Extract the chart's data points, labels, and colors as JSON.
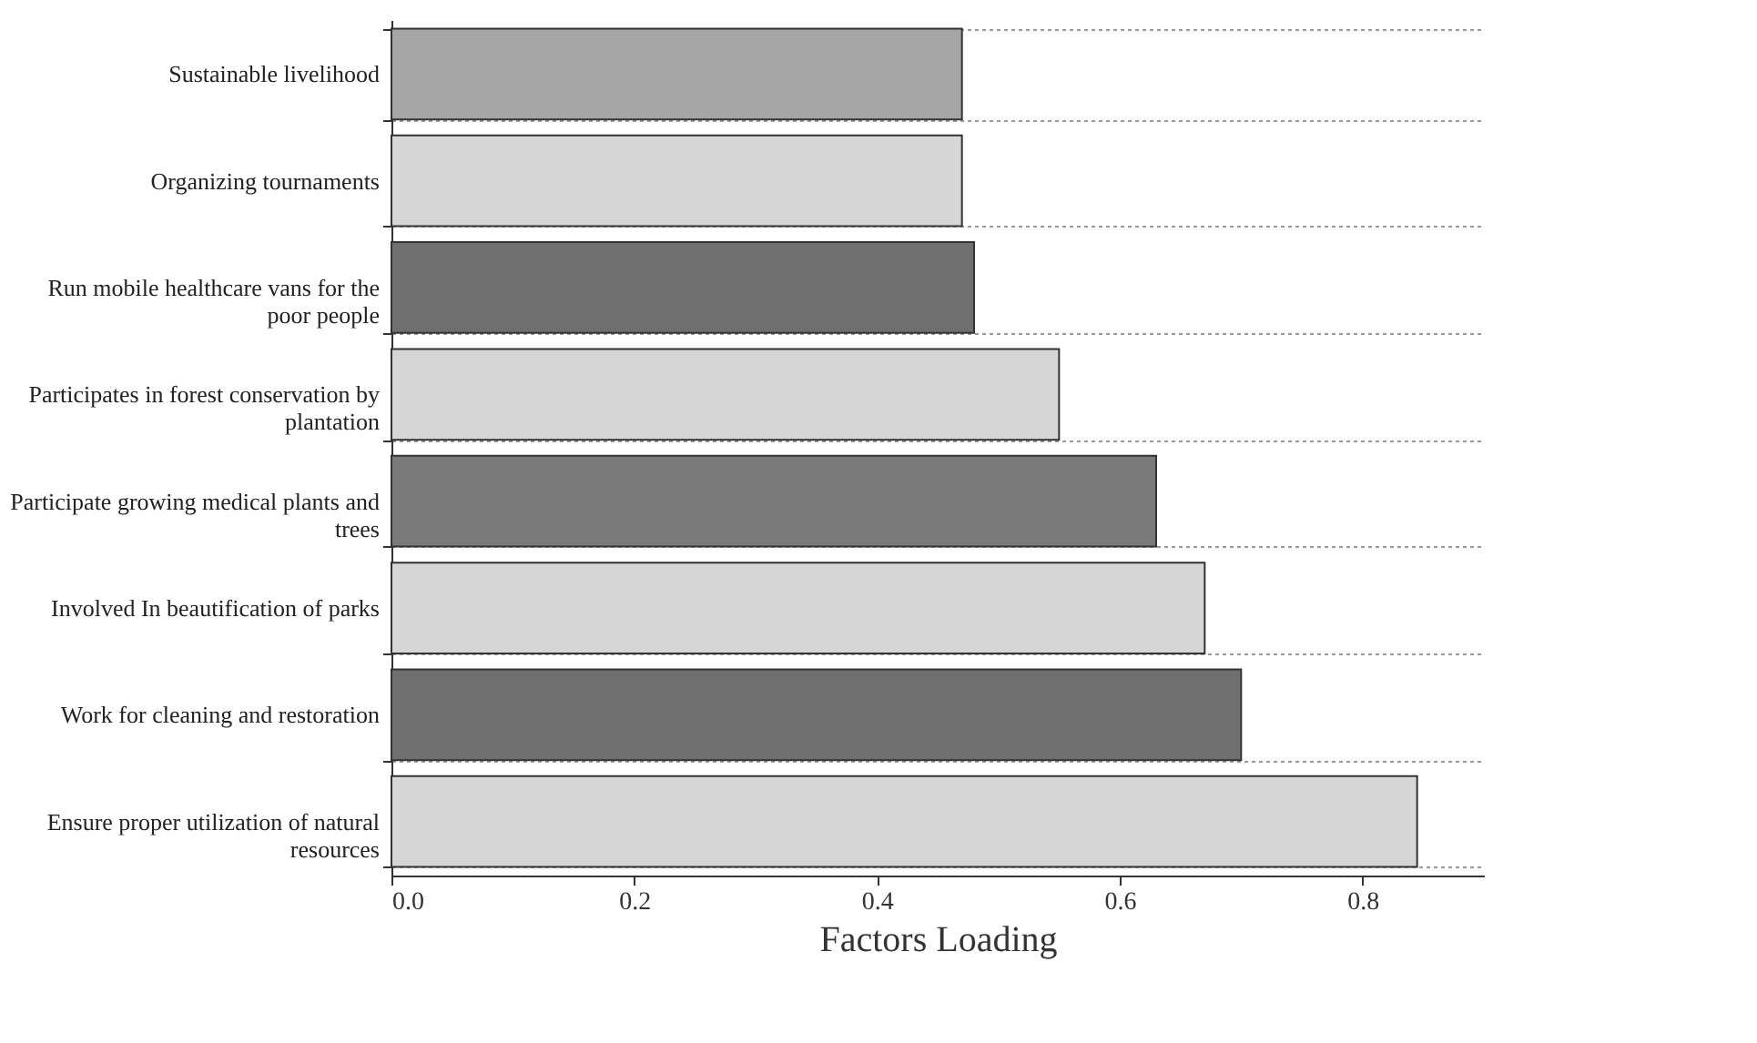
{
  "chart_data": {
    "type": "bar",
    "orientation": "horizontal",
    "xlabel": "Factors Loading",
    "categories": [
      "Sustainable livelihood",
      "Organizing tournaments",
      "Run mobile healthcare vans for the poor people",
      "Participates in forest conservation by plantation",
      "Participate growing medical plants and trees",
      "Involved In beautification of parks",
      "Work for cleaning and restoration",
      "Ensure proper utilization of natural resources"
    ],
    "values": [
      0.47,
      0.47,
      0.48,
      0.55,
      0.63,
      0.67,
      0.7,
      0.845
    ],
    "colors": [
      "#a6a6a6",
      "#d6d6d6",
      "#6f6f6f",
      "#d6d6d6",
      "#7a7a7a",
      "#d6d6d6",
      "#6f6f6f",
      "#d6d6d6"
    ],
    "xlim": [
      0,
      0.9
    ],
    "xticks": [
      {
        "value": 0,
        "label": "0.0"
      },
      0.2,
      0.4,
      0.6,
      0.8
    ],
    "grid": "y"
  }
}
